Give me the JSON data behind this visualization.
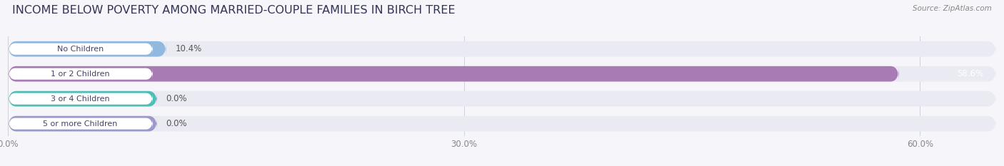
{
  "title": "INCOME BELOW POVERTY AMONG MARRIED-COUPLE FAMILIES IN BIRCH TREE",
  "source": "Source: ZipAtlas.com",
  "categories": [
    "No Children",
    "1 or 2 Children",
    "3 or 4 Children",
    "5 or more Children"
  ],
  "values": [
    10.4,
    58.6,
    0.0,
    0.0
  ],
  "bar_colors": [
    "#91b9e0",
    "#a97bb5",
    "#4dbdb5",
    "#9999cc"
  ],
  "bar_bg_color": "#eaeaf2",
  "label_bg_color": "#ffffff",
  "xlim": [
    0,
    65
  ],
  "xticks": [
    0.0,
    30.0,
    60.0
  ],
  "xtick_labels": [
    "0.0%",
    "30.0%",
    "60.0%"
  ],
  "title_fontsize": 11.5,
  "tick_fontsize": 8.5,
  "label_fontsize": 8,
  "value_fontsize": 8.5,
  "background_color": "#f5f5fa",
  "label_text_color": "#444466",
  "value_text_color": "#555555"
}
